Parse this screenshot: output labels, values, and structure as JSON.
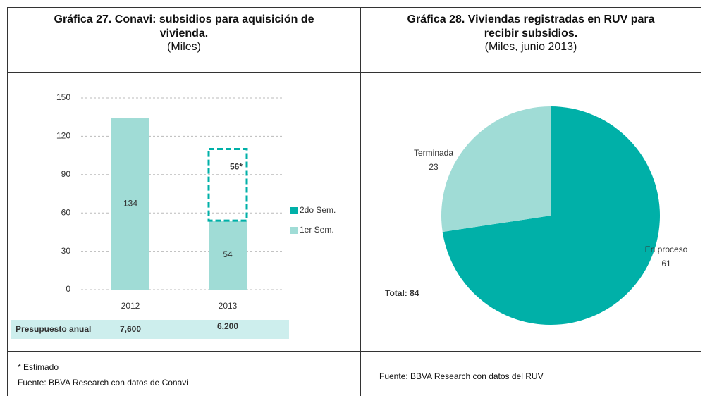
{
  "chart_data": [
    {
      "type": "bar",
      "stacked": true,
      "title": "Gráfica 27. Conavi: subsidios para aquisición de vivienda.",
      "subtitle": "(Miles)",
      "categories": [
        "2012",
        "2013"
      ],
      "series": [
        {
          "name": "1er Sem.",
          "color": "#a0dcd6",
          "values": [
            134,
            54
          ]
        },
        {
          "name": "2do Sem.",
          "color": "#00b0a8",
          "values": [
            null,
            56
          ],
          "value_labels": [
            null,
            "56*"
          ],
          "dashed": true
        }
      ],
      "ylim": [
        0,
        150
      ],
      "yticks": [
        0,
        30,
        60,
        90,
        120,
        150
      ],
      "grid": true,
      "legend": "right",
      "budget": {
        "label": "Presupuesto anual",
        "values": [
          7600,
          6200
        ],
        "value_labels": [
          "7,600",
          "6,200"
        ]
      },
      "notes": [
        "* Estimado",
        "Fuente: BBVA Research con datos de Conavi"
      ]
    },
    {
      "type": "pie",
      "title": "Gráfica 28. Viviendas registradas en RUV para recibir subsidios.",
      "subtitle": "(Miles, junio 2013)",
      "categories": [
        "En proceso",
        "Terminada"
      ],
      "values": [
        61,
        23
      ],
      "colors": [
        "#00b0a8",
        "#a0dcd6"
      ],
      "annotation": "Total: 84",
      "notes": [
        "Fuente: BBVA Research con datos del RUV"
      ]
    }
  ]
}
